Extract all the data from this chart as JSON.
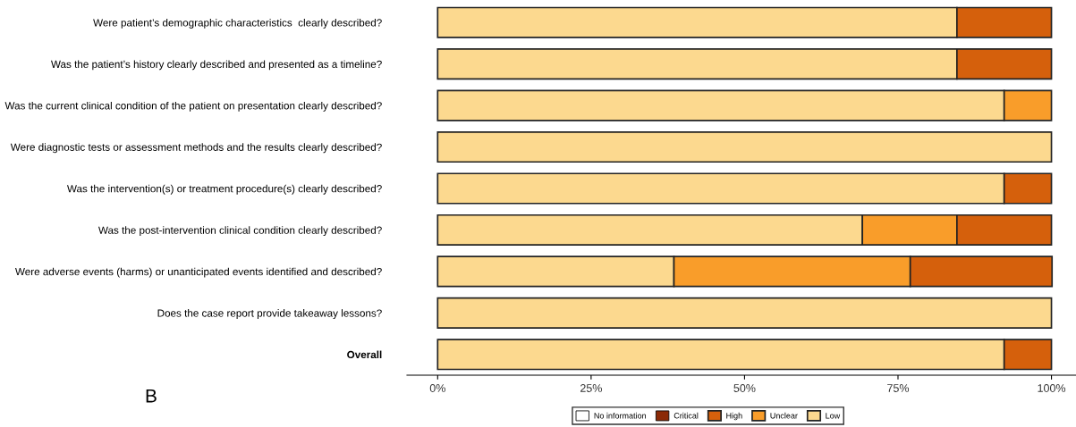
{
  "chart_data": {
    "type": "bar",
    "orientation": "horizontal",
    "stacked": true,
    "categories": [
      "Were patient’s demographic characteristics  clearly described?",
      "Was the patient’s history clearly described and presented as a timeline?",
      "Was the current clinical condition of the patient on presentation clearly described?",
      "Were diagnostic tests or assessment methods and the results clearly described?",
      "Was the intervention(s) or treatment procedure(s) clearly described?",
      "Was the post-intervention clinical condition clearly described?",
      "Were adverse events (harms) or unanticipated events identified and described?",
      "Does the case report provide takeaway lessons?",
      "Overall"
    ],
    "series": [
      {
        "name": "Low",
        "color": "#fcd98f",
        "values": [
          84.6,
          84.6,
          92.3,
          100,
          92.3,
          69.2,
          38.5,
          100,
          92.3
        ]
      },
      {
        "name": "Unclear",
        "color": "#f99d2a",
        "values": [
          0,
          0,
          7.7,
          0,
          0,
          15.4,
          38.5,
          0,
          0
        ]
      },
      {
        "name": "High",
        "color": "#d5600c",
        "values": [
          15.4,
          15.4,
          0,
          0,
          7.7,
          15.4,
          23.1,
          0,
          7.7
        ]
      },
      {
        "name": "Critical",
        "color": "#8b2a06",
        "values": [
          0,
          0,
          0,
          0,
          0,
          0,
          0,
          0,
          0
        ]
      },
      {
        "name": "No information",
        "color": "#ffffff",
        "values": [
          0,
          0,
          0,
          0,
          0,
          0,
          0,
          0,
          0
        ]
      }
    ],
    "xlim": [
      -5,
      104
    ],
    "xticks": [
      {
        "value": 0,
        "label": "0%"
      },
      {
        "value": 25,
        "label": "25%"
      },
      {
        "value": 50,
        "label": "50%"
      },
      {
        "value": 75,
        "label": "75%"
      },
      {
        "value": 100,
        "label": "100%"
      }
    ],
    "grid": false,
    "legend": "bottom",
    "annotations": [
      "B"
    ]
  }
}
